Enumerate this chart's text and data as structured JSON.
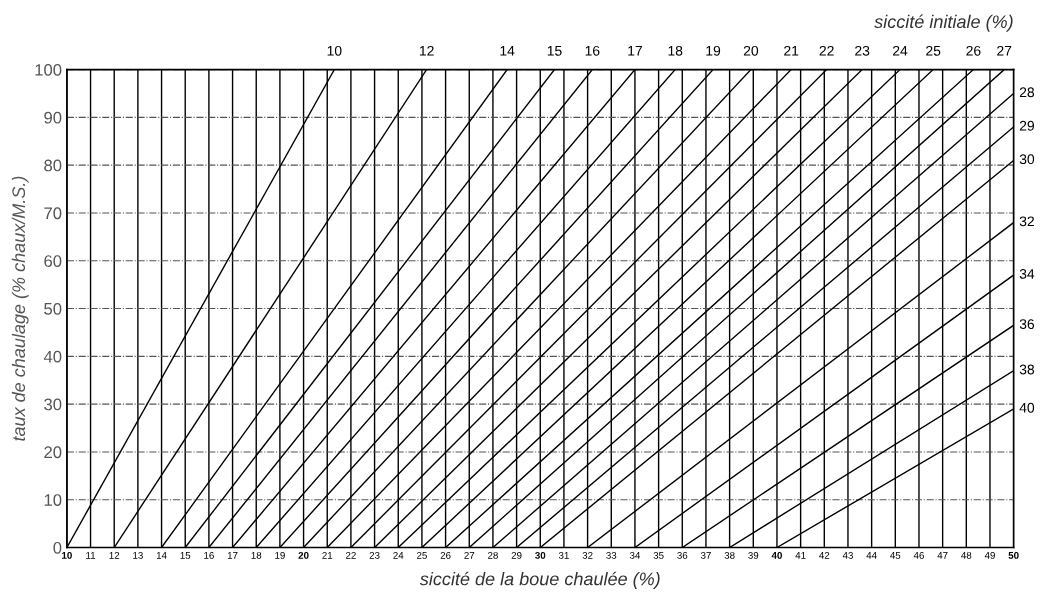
{
  "chart_data": {
    "type": "line",
    "title": "siccité initiale (%)",
    "xlabel": "siccité de la boue chaulée (%)",
    "ylabel": "taux de chaulage (% chaux/M.S.)",
    "xlim": [
      10,
      50
    ],
    "ylim": [
      0,
      100
    ],
    "xticks": [
      10,
      11,
      12,
      13,
      14,
      15,
      16,
      17,
      18,
      19,
      20,
      21,
      22,
      23,
      24,
      25,
      26,
      27,
      28,
      29,
      30,
      31,
      32,
      33,
      34,
      35,
      36,
      37,
      38,
      39,
      40,
      41,
      42,
      43,
      44,
      45,
      46,
      47,
      48,
      49,
      50
    ],
    "yticks": [
      0,
      10,
      20,
      30,
      40,
      50,
      60,
      70,
      80,
      90,
      100
    ],
    "grid": true,
    "legend": false,
    "marker": "none",
    "line_style": "solid",
    "series": [
      {
        "name": "10",
        "color": "#000000",
        "x": [
          10,
          21.3
        ],
        "values": [
          0,
          100
        ]
      },
      {
        "name": "12",
        "color": "#000000",
        "x": [
          12,
          25.2
        ],
        "values": [
          0,
          100
        ]
      },
      {
        "name": "14",
        "color": "#000000",
        "x": [
          14,
          28.6
        ],
        "values": [
          0,
          100
        ]
      },
      {
        "name": "15",
        "color": "#000000",
        "x": [
          15,
          30.6
        ],
        "values": [
          0,
          100
        ]
      },
      {
        "name": "16",
        "color": "#000000",
        "x": [
          16,
          32.2
        ],
        "values": [
          0,
          100
        ]
      },
      {
        "name": "17",
        "color": "#000000",
        "x": [
          17,
          34.0
        ],
        "values": [
          0,
          100
        ]
      },
      {
        "name": "18",
        "color": "#000000",
        "x": [
          18,
          35.7
        ],
        "values": [
          0,
          100
        ]
      },
      {
        "name": "19",
        "color": "#000000",
        "x": [
          19,
          37.3
        ],
        "values": [
          0,
          100
        ]
      },
      {
        "name": "20",
        "color": "#000000",
        "x": [
          20,
          38.9
        ],
        "values": [
          0,
          100
        ]
      },
      {
        "name": "21",
        "color": "#000000",
        "x": [
          21,
          40.6
        ],
        "values": [
          0,
          100
        ]
      },
      {
        "name": "22",
        "color": "#000000",
        "x": [
          22,
          42.1
        ],
        "values": [
          0,
          100
        ]
      },
      {
        "name": "23",
        "color": "#000000",
        "x": [
          23,
          43.6
        ],
        "values": [
          0,
          100
        ]
      },
      {
        "name": "24",
        "color": "#000000",
        "x": [
          24,
          45.2
        ],
        "values": [
          0,
          100
        ]
      },
      {
        "name": "25",
        "color": "#000000",
        "x": [
          25,
          46.6
        ],
        "values": [
          0,
          100
        ]
      },
      {
        "name": "26",
        "color": "#000000",
        "x": [
          26,
          48.3
        ],
        "values": [
          0,
          100
        ]
      },
      {
        "name": "27",
        "color": "#000000",
        "x": [
          27,
          49.6
        ],
        "values": [
          0,
          100
        ]
      },
      {
        "name": "28",
        "color": "#000000",
        "x": [
          28,
          50
        ],
        "values": [
          0,
          95
        ]
      },
      {
        "name": "29",
        "color": "#000000",
        "x": [
          29,
          50
        ],
        "values": [
          0,
          88
        ]
      },
      {
        "name": "30",
        "color": "#000000",
        "x": [
          30,
          50
        ],
        "values": [
          0,
          81
        ]
      },
      {
        "name": "32",
        "color": "#000000",
        "x": [
          32,
          50
        ],
        "values": [
          0,
          68
        ]
      },
      {
        "name": "34",
        "color": "#000000",
        "x": [
          34,
          50
        ],
        "values": [
          0,
          57
        ]
      },
      {
        "name": "36",
        "color": "#000000",
        "x": [
          36,
          50
        ],
        "values": [
          0,
          46.5
        ]
      },
      {
        "name": "38",
        "color": "#000000",
        "x": [
          38,
          50
        ],
        "values": [
          0,
          37
        ]
      },
      {
        "name": "40",
        "color": "#000000",
        "x": [
          40,
          50
        ],
        "values": [
          0,
          29
        ]
      }
    ]
  }
}
